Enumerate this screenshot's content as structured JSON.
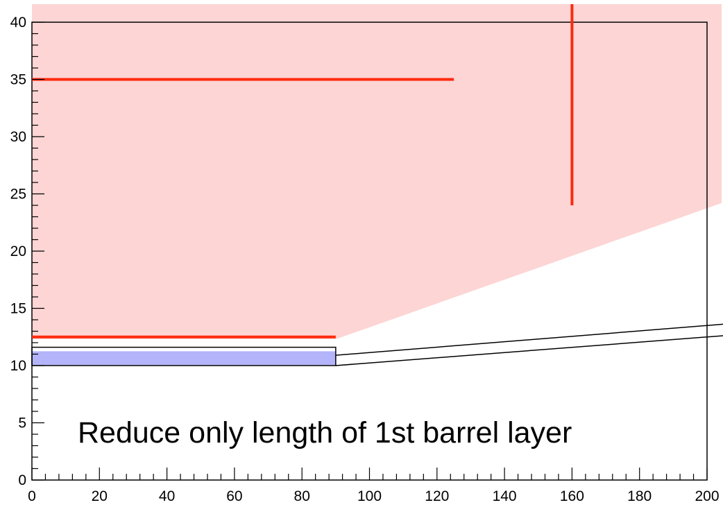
{
  "chart_data": {
    "type": "line",
    "title": "",
    "xlabel": "",
    "ylabel": "",
    "xlim": [
      0,
      200
    ],
    "ylim": [
      0,
      40
    ],
    "x_ticks": [
      0,
      20,
      40,
      60,
      80,
      100,
      120,
      140,
      160,
      180,
      200
    ],
    "y_ticks": [
      0,
      5,
      10,
      15,
      20,
      25,
      30,
      35,
      40
    ],
    "grid": false,
    "colors": {
      "shaded_region": "#fdd5d5",
      "red_lines": "#ff2a0f",
      "layer_fill": "#b4b4fa",
      "outline": "#000000"
    },
    "shaded_region": {
      "polygon": [
        [
          0,
          41.7
        ],
        [
          200,
          41.7
        ],
        [
          200,
          24.2
        ],
        [
          90,
          12.3
        ],
        [
          0,
          12.3
        ]
      ]
    },
    "red_lines": [
      {
        "x": [
          0,
          125
        ],
        "y": [
          35,
          35
        ]
      },
      {
        "x": [
          0,
          90
        ],
        "y": [
          12.5,
          12.5
        ]
      },
      {
        "x": [
          160,
          160
        ],
        "y": [
          24,
          41.7
        ]
      }
    ],
    "barrel_layer_filled": {
      "x": [
        0,
        90
      ],
      "y": [
        10.05,
        11.25
      ]
    },
    "barrel_layer_outline": {
      "x": [
        0,
        90
      ],
      "y": [
        10,
        11.6
      ]
    },
    "endcap_lines": [
      {
        "x": [
          90,
          200
        ],
        "y": [
          10.0,
          12.5
        ]
      },
      {
        "x": [
          90,
          200
        ],
        "y": [
          10.9,
          13.5
        ]
      }
    ],
    "frame": {
      "x": [
        0,
        200
      ],
      "y": [
        0,
        40
      ]
    },
    "annotation": "Reduce only length of 1st barrel layer"
  }
}
